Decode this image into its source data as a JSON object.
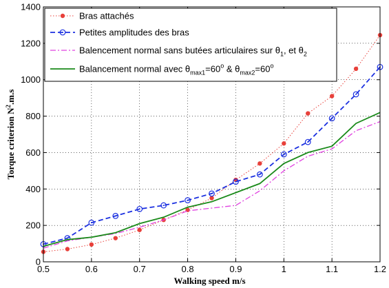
{
  "chart_data": {
    "type": "line",
    "xlabel": "Walking speed    m/s",
    "ylabel": "Torque criterion  N²·m·s",
    "ylabel_parts": {
      "main": "Torque criterion  N",
      "sup": "2",
      "rest": ".m.s"
    },
    "xlim": [
      0.5,
      1.2
    ],
    "ylim": [
      0,
      1400
    ],
    "xticks": [
      "0.5",
      "0.6",
      "0.7",
      "0.8",
      "0.9",
      "1",
      "1.1",
      "1.2"
    ],
    "yticks": [
      "0",
      "200",
      "400",
      "600",
      "800",
      "1000",
      "1200",
      "1400"
    ],
    "grid": true,
    "legend_position": "top-left",
    "series": [
      {
        "name": "Bras attachés",
        "color": "#e8403a",
        "style": "dotted-red-dots",
        "x": [
          0.5,
          0.55,
          0.6,
          0.65,
          0.7,
          0.75,
          0.8,
          0.85,
          0.9,
          0.95,
          1.0,
          1.05,
          1.1,
          1.15,
          1.2
        ],
        "y": [
          55,
          70,
          95,
          130,
          175,
          230,
          285,
          350,
          450,
          540,
          650,
          815,
          910,
          1060,
          1245
        ]
      },
      {
        "name": "Petites amplitudes des bras",
        "color": "#1a2fe0",
        "style": "dashed-circles",
        "x": [
          0.5,
          0.55,
          0.6,
          0.65,
          0.7,
          0.75,
          0.8,
          0.85,
          0.9,
          0.95,
          1.0,
          1.05,
          1.1,
          1.15,
          1.2
        ],
        "y": [
          97,
          130,
          215,
          252,
          290,
          310,
          338,
          375,
          440,
          480,
          590,
          658,
          788,
          920,
          1070
        ]
      },
      {
        "name": "Balencement normal sans butées articulaires sur θ1, et θ2",
        "legend_parts": {
          "pre": "Balencement normal sans butées articulaires sur θ",
          "sub1": "1",
          "mid": ", et θ",
          "sub2": "2"
        },
        "color": "#e040e0",
        "style": "dashdot",
        "x": [
          0.5,
          0.55,
          0.6,
          0.65,
          0.7,
          0.75,
          0.8,
          0.85,
          0.9,
          0.95,
          1.0,
          1.05,
          1.1,
          1.15,
          1.2
        ],
        "y": [
          75,
          115,
          135,
          155,
          190,
          230,
          280,
          295,
          310,
          390,
          500,
          580,
          620,
          720,
          770
        ]
      },
      {
        "name": "Balancement normal avec θmax1=60° & θmax2=60°",
        "legend_parts": {
          "pre": "Balancement normal avec θ",
          "sub1": "max1",
          "mid1": "=60",
          "sup1": "o",
          "mid2": " & θ",
          "sub2": "max2",
          "mid3": "=60",
          "sup2": "o"
        },
        "color": "#1a8a1a",
        "style": "solid",
        "x": [
          0.5,
          0.55,
          0.6,
          0.65,
          0.7,
          0.75,
          0.8,
          0.85,
          0.9,
          0.95,
          1.0,
          1.05,
          1.1,
          1.15,
          1.2
        ],
        "y": [
          85,
          122,
          135,
          160,
          210,
          245,
          300,
          330,
          380,
          430,
          540,
          600,
          635,
          760,
          820
        ]
      }
    ]
  }
}
